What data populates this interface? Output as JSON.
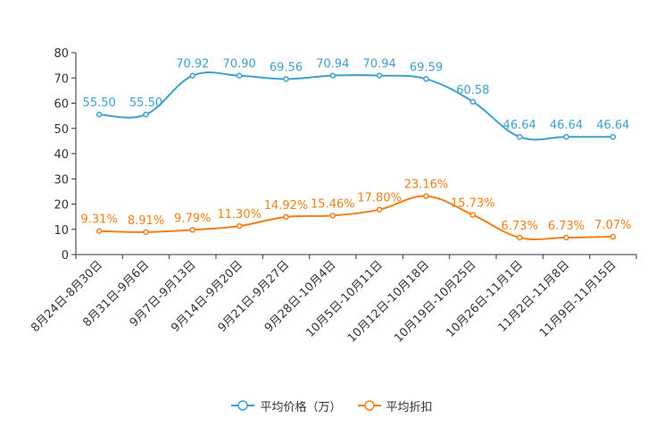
{
  "chart_data": {
    "type": "line",
    "title": "",
    "xlabel": "",
    "ylabel": "",
    "ylim": [
      0,
      80
    ],
    "yticks": [
      "0",
      "10",
      "20",
      "30",
      "40",
      "50",
      "60",
      "70",
      "80"
    ],
    "categories": [
      "8月24日-8月30日",
      "8月31日-9月6日",
      "9月7日-9月13日",
      "9月14日-9月20日",
      "9月21日-9月27日",
      "9月28日-10月4日",
      "10月5日-10月11日",
      "10月12日-10月18日",
      "10月19日-10月25日",
      "10月26日-11月1日",
      "11月2日-11月8日",
      "11月9日-11月15日"
    ],
    "series": [
      {
        "name": "平均价格（万）",
        "color": "#3fa0d0",
        "values": [
          55.5,
          55.5,
          70.92,
          70.9,
          69.56,
          70.94,
          70.94,
          69.59,
          60.58,
          46.64,
          46.64,
          46.64
        ],
        "labels": [
          "55.50",
          "55.50",
          "70.92",
          "70.90",
          "69.56",
          "70.94",
          "70.94",
          "69.59",
          "60.58",
          "46.64",
          "46.64",
          "46.64"
        ]
      },
      {
        "name": "平均折扣",
        "color": "#f07f19",
        "values": [
          9.31,
          8.91,
          9.79,
          11.3,
          14.92,
          15.46,
          17.8,
          23.16,
          15.73,
          6.73,
          6.73,
          7.07
        ],
        "labels": [
          "9.31%",
          "8.91%",
          "9.79%",
          "11.30%",
          "14.92%",
          "15.46%",
          "17.80%",
          "23.16%",
          "15.73%",
          "6.73%",
          "6.73%",
          "7.07%"
        ]
      }
    ],
    "legend_position": "bottom-center"
  }
}
